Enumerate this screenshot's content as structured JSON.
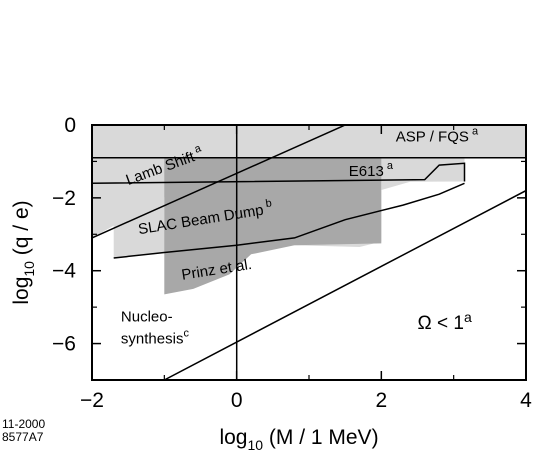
{
  "chart_data": {
    "type": "area",
    "xlabel_text": "log",
    "xlabel_sub": "10",
    "xlabel_rest": " (M / 1 MeV)",
    "ylabel_text": "log",
    "ylabel_sub": "10",
    "ylabel_rest": " (q / e)",
    "xlim": [
      -2,
      4
    ],
    "ylim": [
      -7,
      0
    ],
    "x_ticks": [
      -2,
      0,
      2,
      4
    ],
    "x_tick_labels": [
      "−2",
      "0",
      "2",
      "4"
    ],
    "y_ticks": [
      0,
      -2,
      -4,
      -6
    ],
    "y_tick_labels": [
      "0",
      "−2",
      "−4",
      "−6"
    ],
    "grid": false,
    "colors": {
      "light_region": "#d9d9d9",
      "dark_region": "#a8a8a8",
      "line": "#000000"
    },
    "regions": [
      {
        "name": "ASP / FQS",
        "superscript": "a",
        "shade": "light",
        "points": [
          [
            -2,
            0
          ],
          [
            4,
            0
          ],
          [
            4,
            -0.9
          ],
          [
            -2,
            -0.9
          ]
        ]
      },
      {
        "name": "Lamb Shift",
        "superscript": "a",
        "shade": "light",
        "points": [
          [
            -2,
            -0.9
          ],
          [
            -2,
            -3.1
          ],
          [
            -0.3,
            -1.2
          ],
          [
            0,
            -0.9
          ]
        ]
      },
      {
        "name": "SLAC Beam Dump",
        "superscript": "b",
        "shade": "light",
        "points": [
          [
            -1.7,
            -3.65
          ],
          [
            -1.7,
            -1.6
          ],
          [
            3.15,
            -1.55
          ],
          [
            3.15,
            -0.9
          ],
          [
            -1,
            -0.9
          ],
          [
            -1,
            -2.8
          ],
          [
            1.2,
            -2.15
          ],
          [
            1.8,
            -1.9
          ],
          [
            2.5,
            -1.5
          ],
          [
            2.65,
            -1.2
          ],
          [
            3.15,
            -1.1
          ],
          [
            3.15,
            -1.55
          ],
          [
            3.15,
            -0.9
          ],
          [
            4,
            -0.9
          ],
          [
            4,
            -0.9
          ],
          [
            2,
            -0.9
          ],
          [
            2,
            -3.2
          ],
          [
            1.7,
            -3.35
          ],
          [
            0.8,
            -3.3
          ],
          [
            -0.2,
            -3.45
          ],
          [
            -1,
            -3.5
          ]
        ]
      },
      {
        "name": "Prinz et al.",
        "superscript": "",
        "shade": "dark",
        "points": [
          [
            -1,
            -4.65
          ],
          [
            -1,
            -0.9
          ],
          [
            2,
            -0.9
          ],
          [
            2,
            -3.25
          ],
          [
            0.8,
            -3.3
          ],
          [
            0.2,
            -3.55
          ],
          [
            -0.1,
            -4.1
          ],
          [
            -0.6,
            -4.5
          ]
        ]
      }
    ],
    "lines": [
      {
        "name": "Lamb Shift bound",
        "points": [
          [
            -2,
            -3.1
          ],
          [
            1.5,
            0
          ]
        ]
      },
      {
        "name": "Omega bound",
        "points": [
          [
            -1,
            -7
          ],
          [
            4,
            -1.8
          ]
        ]
      },
      {
        "name": "nucleosynthesis bound",
        "points": [
          [
            0,
            0
          ],
          [
            0,
            -7
          ]
        ]
      },
      {
        "name": "ASP bottom",
        "points": [
          [
            -2,
            -0.9
          ],
          [
            4,
            -0.9
          ]
        ]
      },
      {
        "name": "E613 top",
        "points": [
          [
            -2,
            -1.6
          ],
          [
            2.6,
            -1.5
          ],
          [
            2.8,
            -1.1
          ],
          [
            3.15,
            -1.05
          ],
          [
            3.15,
            -1.55
          ]
        ]
      },
      {
        "name": "SLAC bottom",
        "points": [
          [
            -1.7,
            -3.65
          ],
          [
            -1,
            -3.5
          ],
          [
            0,
            -3.3
          ],
          [
            0.8,
            -3.1
          ],
          [
            1.5,
            -2.6
          ],
          [
            2.3,
            -2.2
          ],
          [
            2.8,
            -1.9
          ],
          [
            3.15,
            -1.6
          ]
        ]
      }
    ],
    "annotations": [
      {
        "text": "ASP / FQS",
        "sup": "a",
        "x": 2.2,
        "y": -0.45,
        "angle": 0
      },
      {
        "text": "Lamb Shift",
        "sup": "a",
        "x": -1.5,
        "y": -1.65,
        "angle": -20
      },
      {
        "text": "E613",
        "sup": "a",
        "x": 1.55,
        "y": -1.4,
        "angle": 0
      },
      {
        "text": "SLAC Beam Dump",
        "sup": "b",
        "x": -1.35,
        "y": -3.0,
        "angle": -9
      },
      {
        "text": "Prinz et al.",
        "sup": "",
        "x": -0.75,
        "y": -4.25,
        "angle": -9
      },
      {
        "text": "Nucleo-",
        "sup": "",
        "x": -1.6,
        "y": -5.4,
        "angle": 0
      },
      {
        "text": "synthesis",
        "sup": "c",
        "x": -1.6,
        "y": -6.0,
        "angle": 0
      },
      {
        "text": "Ω < 1",
        "sup": "a",
        "x": 2.5,
        "y": -5.6,
        "angle": 0
      }
    ]
  },
  "stamp": {
    "line1": "11-2000",
    "line2": "8577A7"
  }
}
